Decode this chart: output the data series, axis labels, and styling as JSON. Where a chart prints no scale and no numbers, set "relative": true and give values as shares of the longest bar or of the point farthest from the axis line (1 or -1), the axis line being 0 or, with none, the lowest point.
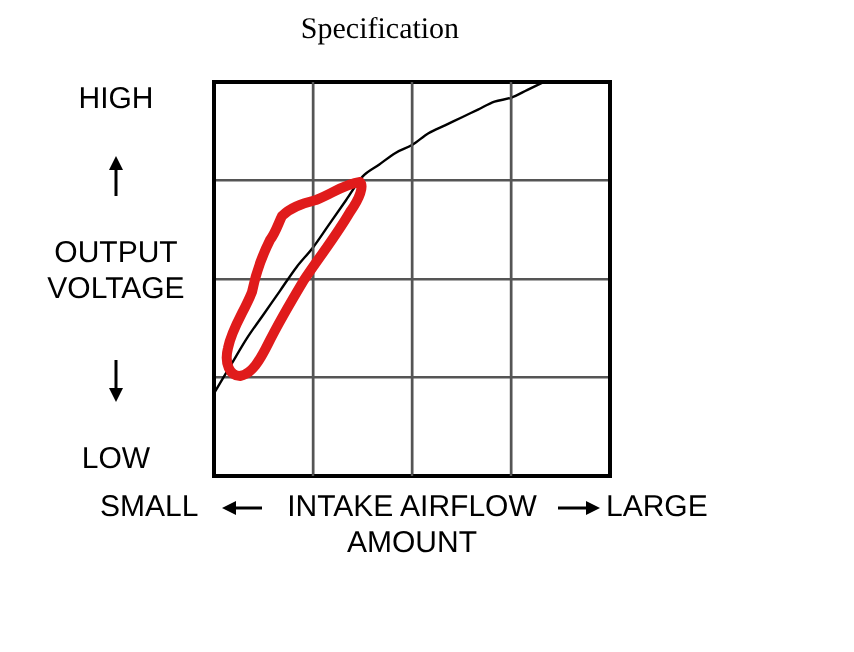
{
  "chart_data": {
    "type": "line",
    "title": "Specification",
    "xlabel": "INTAKE AIRFLOW AMOUNT",
    "ylabel": "OUTPUT VOLTAGE",
    "annotations": [
      "HIGH",
      "LOW",
      "SMALL",
      "LARGE"
    ],
    "categories": [
      null,
      null,
      null,
      null,
      null,
      null,
      null,
      null,
      null,
      null,
      null,
      null,
      null,
      null,
      null,
      null,
      null,
      null,
      null,
      null,
      null,
      null,
      null,
      null,
      null
    ],
    "series": [
      {
        "color": "#000000",
        "values": [
          0.21,
          0.28,
          0.35,
          0.41,
          0.47,
          0.53,
          0.58,
          0.64,
          0.7,
          0.76,
          0.79,
          0.82,
          0.84,
          0.87,
          0.89,
          0.91,
          0.93,
          0.95,
          0.96,
          0.98,
          1.0,
          null,
          null,
          null,
          null
        ]
      }
    ],
    "relative": true,
    "grid": true,
    "legend": false,
    "marker": "none",
    "line_style": "solid"
  }
}
